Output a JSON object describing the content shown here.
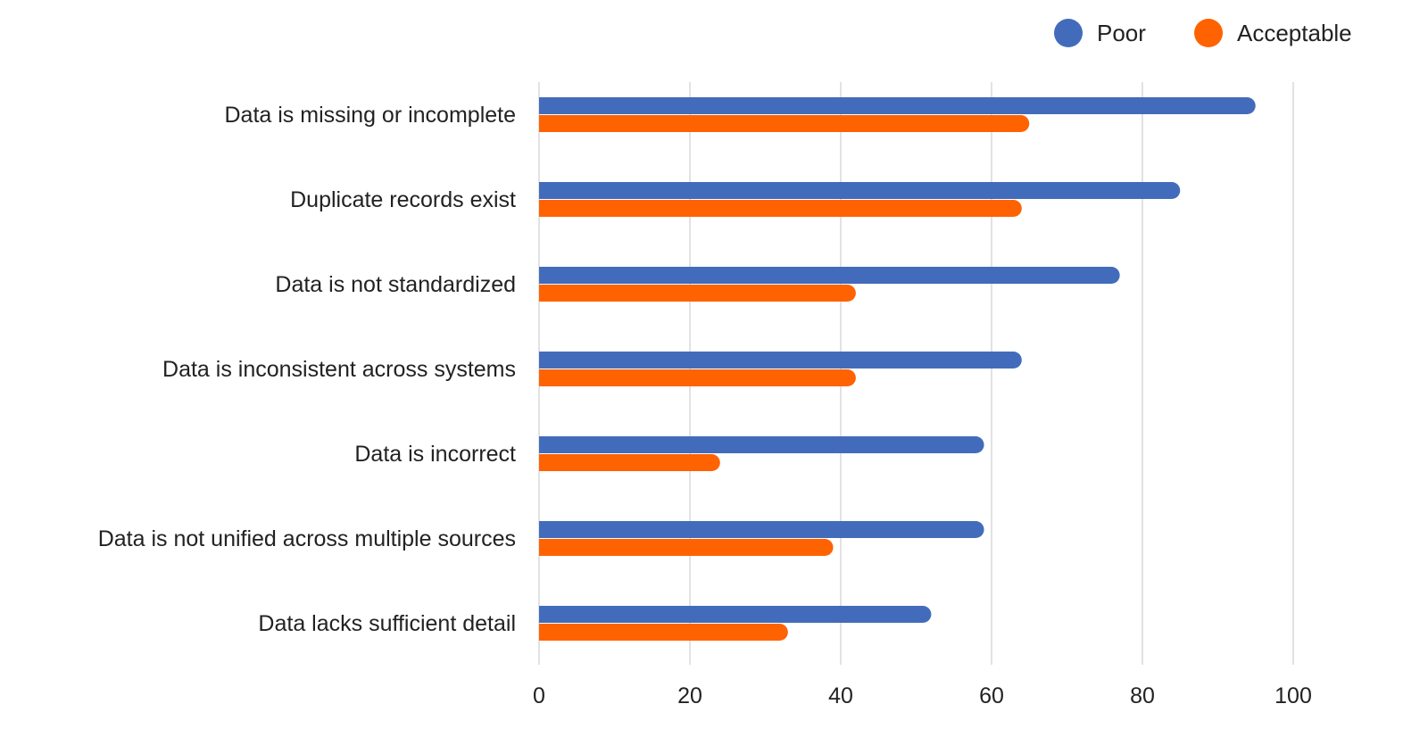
{
  "chart_data": {
    "type": "bar",
    "orientation": "horizontal",
    "categories": [
      "Data is missing or incomplete",
      "Duplicate records exist",
      "Data is not standardized",
      "Data is inconsistent across systems",
      "Data is incorrect",
      "Data is not unified across multiple sources",
      "Data lacks sufficient detail"
    ],
    "series": [
      {
        "name": "Poor",
        "color": "#426CBB",
        "values": [
          95,
          85,
          77,
          64,
          59,
          59,
          52
        ]
      },
      {
        "name": "Acceptable",
        "color": "#FF6200",
        "values": [
          65,
          64,
          42,
          42,
          24,
          39,
          33
        ]
      }
    ],
    "xlim": [
      0,
      100
    ],
    "xticks": [
      "0",
      "20",
      "40",
      "60",
      "80",
      "100"
    ],
    "grid": true,
    "legend": "top-right",
    "title": "",
    "xlabel": "",
    "ylabel": ""
  }
}
